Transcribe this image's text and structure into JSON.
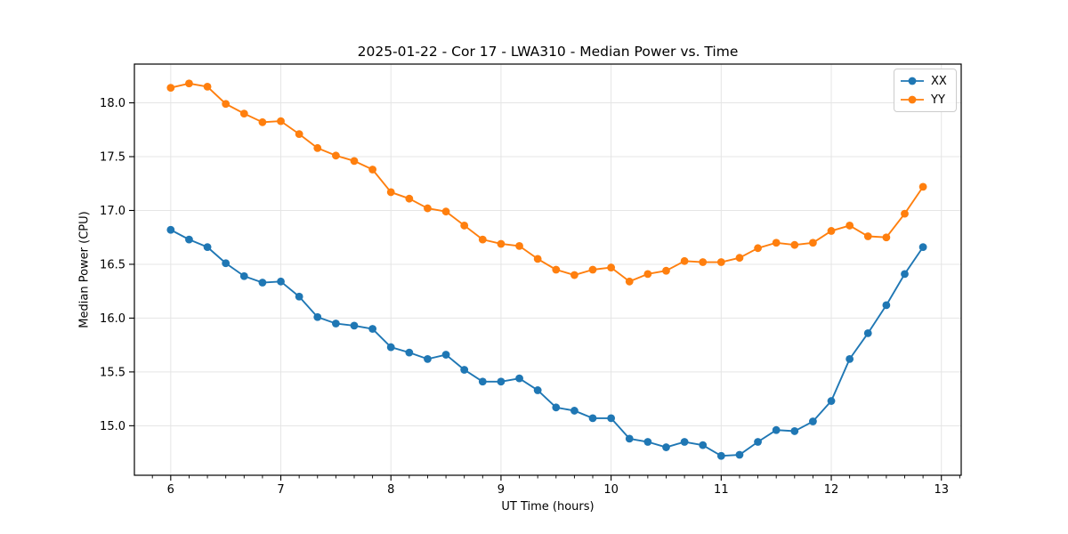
{
  "chart_data": {
    "type": "line",
    "title": "2025-01-22 - Cor 17 - LWA310 - Median Power vs. Time",
    "xlabel": "UT Time (hours)",
    "ylabel": "Median Power (CPU)",
    "grid": true,
    "grid_color": "#e5e5e5",
    "legend_position": "upper right",
    "xlim": [
      5.67,
      13.18
    ],
    "ylim": [
      14.54,
      18.36
    ],
    "x_ticks": [
      6,
      7,
      8,
      9,
      10,
      11,
      12,
      13
    ],
    "x_tick_labels": [
      "6",
      "7",
      "8",
      "9",
      "10",
      "11",
      "12",
      "13"
    ],
    "x_minor_divisions": 6,
    "y_ticks": [
      15.0,
      15.5,
      16.0,
      16.5,
      17.0,
      17.5,
      18.0
    ],
    "y_tick_labels": [
      "15.0",
      "15.5",
      "16.0",
      "16.5",
      "17.0",
      "17.5",
      "18.0"
    ],
    "marker": "circle",
    "x": [
      6.0,
      6.1667,
      6.3333,
      6.5,
      6.6667,
      6.8333,
      7.0,
      7.1667,
      7.3333,
      7.5,
      7.6667,
      7.8333,
      8.0,
      8.1667,
      8.3333,
      8.5,
      8.6667,
      8.8333,
      9.0,
      9.1667,
      9.3333,
      9.5,
      9.6667,
      9.8333,
      10.0,
      10.1667,
      10.3333,
      10.5,
      10.6667,
      10.8333,
      11.0,
      11.1667,
      11.3333,
      11.5,
      11.6667,
      11.8333,
      12.0,
      12.1667,
      12.3333,
      12.5,
      12.6667,
      12.8333
    ],
    "series": [
      {
        "name": "XX",
        "color": "#1f77b4",
        "values": [
          16.82,
          16.73,
          16.66,
          16.51,
          16.39,
          16.33,
          16.34,
          16.2,
          16.01,
          15.95,
          15.93,
          15.9,
          15.73,
          15.68,
          15.62,
          15.66,
          15.52,
          15.41,
          15.41,
          15.44,
          15.33,
          15.17,
          15.14,
          15.07,
          15.07,
          14.88,
          14.85,
          14.8,
          14.85,
          14.82,
          14.72,
          14.73,
          14.85,
          14.96,
          14.95,
          15.04,
          15.23,
          15.62,
          15.86,
          16.12,
          16.41,
          16.66
        ]
      },
      {
        "name": "YY",
        "color": "#ff7f0e",
        "values": [
          18.14,
          18.18,
          18.15,
          17.99,
          17.9,
          17.82,
          17.83,
          17.71,
          17.58,
          17.51,
          17.46,
          17.38,
          17.17,
          17.11,
          17.02,
          16.99,
          16.86,
          16.73,
          16.69,
          16.67,
          16.55,
          16.45,
          16.4,
          16.45,
          16.47,
          16.34,
          16.41,
          16.44,
          16.53,
          16.52,
          16.52,
          16.56,
          16.65,
          16.7,
          16.68,
          16.7,
          16.81,
          16.86,
          16.76,
          16.75,
          16.97,
          17.22
        ]
      }
    ]
  }
}
